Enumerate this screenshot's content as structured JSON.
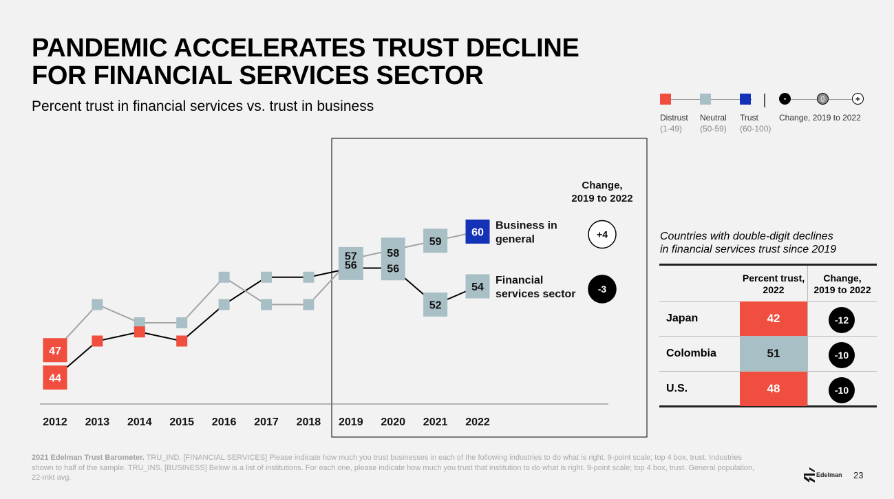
{
  "header": {
    "title_line1": "PANDEMIC ACCELERATES TRUST DECLINE",
    "title_line2": "FOR FINANCIAL SERVICES SECTOR",
    "subtitle": "Percent trust in financial services vs. trust in business"
  },
  "legend": {
    "items": [
      {
        "label": "Distrust",
        "range": "(1-49)",
        "color": "#f04e3e"
      },
      {
        "label": "Neutral",
        "range": "(50-59)",
        "color": "#a9bfc6"
      },
      {
        "label": "Trust",
        "range": "(60-100)",
        "color": "#1432b8"
      }
    ],
    "change_label": "Change, 2019 to 2022",
    "change_symbols": [
      "-",
      "0",
      "+"
    ]
  },
  "colors": {
    "distrust": "#f04e3e",
    "neutral": "#a9bfc6",
    "trust": "#1432b8",
    "business_line": "#a3a3a3",
    "financial_line": "#000000"
  },
  "chart_data": {
    "type": "line",
    "x": [
      "2012",
      "2013",
      "2014",
      "2015",
      "2016",
      "2017",
      "2018",
      "2019",
      "2020",
      "2021",
      "2022"
    ],
    "series": [
      {
        "name": "Business in general",
        "values": [
          47,
          52,
          50,
          50,
          55,
          52,
          52,
          57,
          58,
          59,
          60
        ],
        "labels": [
          "47",
          "",
          "",
          "",
          "",
          "",
          "",
          "57",
          "58",
          "59",
          "60"
        ],
        "change_2019_2022": "+4"
      },
      {
        "name": "Financial services sector",
        "values": [
          44,
          48,
          49,
          48,
          52,
          55,
          55,
          56,
          56,
          52,
          54
        ],
        "labels": [
          "44",
          "",
          "",
          "",
          "",
          "",
          "",
          "56",
          "56",
          "52",
          "54"
        ],
        "change_2019_2022": "-3"
      }
    ],
    "series_display_names": [
      [
        "Business in",
        "general"
      ],
      [
        "Financial",
        "services sector"
      ]
    ],
    "change_header": [
      "Change,",
      "2019 to 2022"
    ],
    "highlight_range": [
      "2019",
      "2022"
    ],
    "grid": false,
    "legend_position": "top-right"
  },
  "countries": {
    "note_line1": "Countries with double-digit declines",
    "note_line2": "in financial services trust since 2019",
    "col_trust": [
      "Percent trust,",
      "2022"
    ],
    "col_change": [
      "Change,",
      "2019 to 2022"
    ],
    "rows": [
      {
        "name": "Japan",
        "trust": "42",
        "change": "-12",
        "color": "#f04e3e"
      },
      {
        "name": "Colombia",
        "trust": "51",
        "change": "-10",
        "color": "#a9bfc6"
      },
      {
        "name": "U.S.",
        "trust": "48",
        "change": "-10",
        "color": "#f04e3e"
      }
    ]
  },
  "footnote": {
    "source": "2021 Edelman Trust Barometer.",
    "text": " TRU_IND. [FINANCIAL SERVICES] Please indicate how much you trust businesses in each of the following industries to do what is right. 9-point scale; top 4 box, trust. Industries shown to half of the sample. TRU_INS. [BUSINESS] Below is a list of institutions. For each one, please indicate how much you trust that institution to do what is right. 9-point scale; top 4 box, trust. General population, 22-mkt avg."
  },
  "brand": {
    "name": "Edelman",
    "page": "23"
  }
}
